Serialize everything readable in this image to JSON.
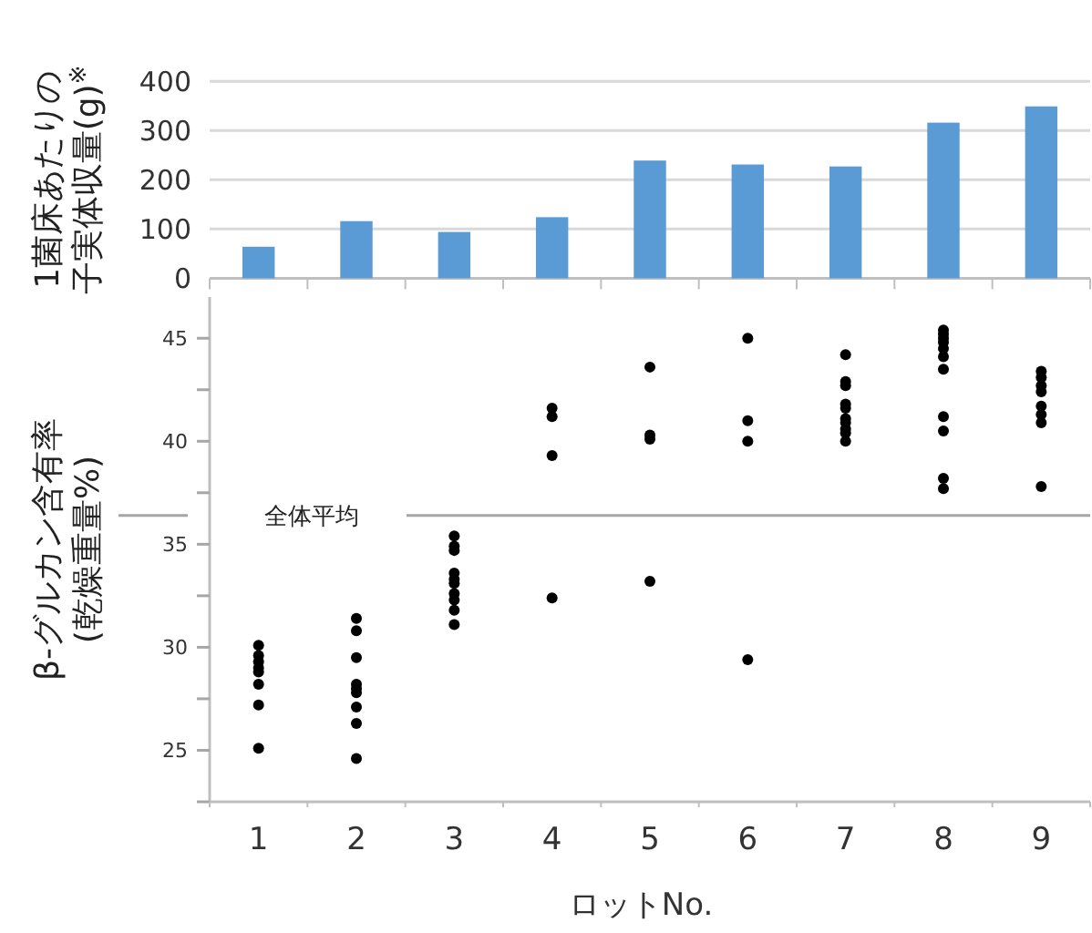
{
  "chart_data": [
    {
      "type": "bar",
      "ylabel": "1菌床あたりの子実体収量(g)$^{※}$",
      "categories": [
        null,
        null,
        null,
        null,
        null,
        null,
        null,
        null,
        null
      ],
      "values": [
        64,
        116,
        94,
        124,
        239,
        231,
        227,
        316,
        349
      ],
      "color": "#5b9bd5",
      "ylim": [
        0,
        400
      ],
      "yticks": [
        0,
        100,
        200,
        300,
        400
      ],
      "grid": "y",
      "tick_labels": "y"
    },
    {
      "type": "scatter",
      "ylabel": "β-グルカン含有率(乾燥重量%)",
      "xlabel": "ロットNo.",
      "categories": [
        "1",
        "2",
        "3",
        "4",
        "5",
        "6",
        "7",
        "8",
        "9"
      ],
      "marker": "circle",
      "series": [
        {
          "color": "#000000",
          "x": [
            "1",
            "1",
            "1",
            "1",
            "1",
            "1",
            "1",
            "1",
            "2",
            "2",
            "2",
            "2",
            "2",
            "2",
            "2",
            "2",
            "2",
            "3",
            "3",
            "3",
            "3",
            "3",
            "3",
            "3",
            "3",
            "3",
            "3",
            "4",
            "4",
            "4",
            "4",
            "5",
            "5",
            "5",
            "5",
            "6",
            "6",
            "6",
            "6",
            "7",
            "7",
            "7",
            "7",
            "7",
            "7",
            "7",
            "7",
            "7",
            "7",
            "8",
            "8",
            "8",
            "8",
            "8",
            "8",
            "8",
            "8",
            "8",
            "8",
            "8",
            "9",
            "9",
            "9",
            "9",
            "9",
            "9",
            "9",
            "9"
          ],
          "values": [
            30.1,
            29.6,
            29.3,
            29.0,
            28.8,
            28.2,
            27.2,
            25.1,
            31.4,
            30.8,
            29.5,
            28.2,
            28.0,
            27.8,
            27.1,
            26.3,
            24.6,
            35.4,
            34.9,
            34.7,
            33.6,
            33.3,
            33.1,
            32.6,
            32.3,
            31.8,
            31.1,
            41.6,
            41.2,
            39.3,
            32.4,
            43.6,
            40.3,
            40.1,
            33.2,
            45.0,
            41.0,
            40.0,
            29.4,
            44.2,
            42.9,
            42.7,
            41.8,
            41.6,
            41.1,
            40.9,
            40.6,
            40.4,
            40.0,
            45.4,
            45.2,
            45.0,
            44.8,
            44.5,
            44.1,
            43.5,
            41.2,
            40.5,
            38.2,
            37.7,
            43.4,
            43.1,
            42.7,
            42.4,
            41.7,
            41.3,
            40.9,
            37.8
          ]
        }
      ],
      "ylim": [
        22.5,
        47
      ],
      "yticks": [
        {
          "value": 22.5,
          "label": null
        },
        25,
        {
          "value": 27.5,
          "label": null
        },
        30,
        {
          "value": 32.5,
          "label": null
        },
        35,
        {
          "value": 37.5,
          "label": null
        },
        40,
        {
          "value": 42.5,
          "label": null
        },
        45
      ],
      "ref_lines": [
        {
          "axis": "y",
          "value": 36.4,
          "label": "全体平均",
          "color": "#a6a6a6"
        }
      ]
    }
  ]
}
